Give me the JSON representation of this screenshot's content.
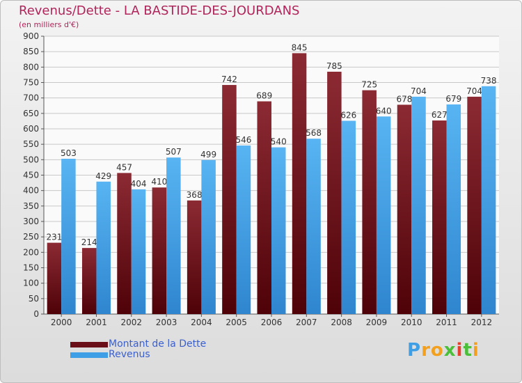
{
  "title": "Revenus/Dette - LA BASTIDE-DES-JOURDANS",
  "subtitle": "(en milliers d'€)",
  "chart_data": {
    "type": "bar",
    "title": "Revenus/Dette - LA BASTIDE-DES-JOURDANS",
    "subtitle": "(en milliers d'€)",
    "categories": [
      "2000",
      "2001",
      "2002",
      "2003",
      "2004",
      "2005",
      "2006",
      "2007",
      "2008",
      "2009",
      "2010",
      "2011",
      "2012"
    ],
    "series": [
      {
        "name": "Montant de la Dette",
        "color": "#7b1a22",
        "values": [
          231,
          214,
          457,
          410,
          368,
          742,
          689,
          845,
          785,
          725,
          678,
          627,
          704
        ]
      },
      {
        "name": "Revenus",
        "color": "#3f9fe6",
        "values": [
          503,
          429,
          404,
          507,
          499,
          546,
          540,
          568,
          626,
          640,
          704,
          679,
          738
        ]
      }
    ],
    "ylim": [
      0,
      900
    ],
    "yticks": [
      0,
      50,
      100,
      150,
      200,
      250,
      300,
      350,
      400,
      450,
      500,
      550,
      600,
      650,
      700,
      750,
      800,
      850,
      900
    ],
    "grid": true,
    "legend": "bottom-left"
  },
  "legend": [
    {
      "label": "Montant de la Dette",
      "color": "#6a0f18"
    },
    {
      "label": "Revenus",
      "color": "#3f9fe6"
    }
  ],
  "logo": {
    "letters": [
      "P",
      "r",
      "o",
      "x",
      "i",
      "t",
      "i"
    ],
    "colors": [
      "#3f9fe6",
      "#f2a01d",
      "#f2a01d",
      "#4bbf3a",
      "#e8402f",
      "#4bbf3a",
      "#f2a01d"
    ]
  }
}
